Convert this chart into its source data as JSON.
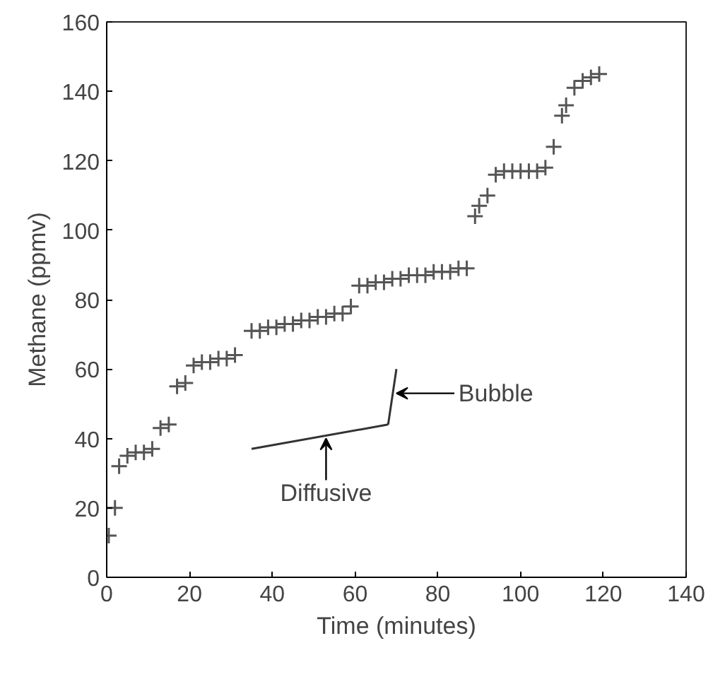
{
  "chart_data": {
    "type": "scatter",
    "xlabel": "Time (minutes)",
    "ylabel": "Methane (ppmv)",
    "xlim": [
      0,
      140
    ],
    "ylim": [
      0,
      160
    ],
    "xticks": [
      0,
      20,
      40,
      60,
      80,
      100,
      120,
      140
    ],
    "yticks": [
      0,
      20,
      40,
      60,
      80,
      100,
      120,
      140,
      160
    ],
    "grid": false,
    "series": [
      {
        "marker": "cross",
        "color": "#555555",
        "x": [
          0.5,
          2,
          3,
          5,
          7,
          9,
          11,
          13,
          15,
          17,
          19,
          21,
          23,
          25,
          27,
          29,
          31,
          35,
          37,
          39,
          41,
          43,
          45,
          47,
          49,
          51,
          53,
          55,
          57,
          59,
          61,
          63,
          65,
          67,
          69,
          71,
          73,
          75,
          77,
          79,
          81,
          83,
          85,
          87,
          89,
          90,
          92,
          94,
          96,
          98,
          100,
          102,
          104,
          106,
          108,
          110,
          111,
          113,
          115,
          117,
          119
        ],
        "values": [
          12,
          20,
          32,
          35,
          36,
          36,
          37,
          43,
          44,
          55,
          56,
          61,
          62,
          62,
          63,
          63,
          64,
          71,
          71,
          72,
          72,
          73,
          73,
          74,
          74,
          75,
          75,
          76,
          76,
          78,
          84,
          84,
          85,
          85,
          86,
          86,
          87,
          87,
          87,
          88,
          88,
          88,
          89,
          89,
          104,
          107,
          110,
          116,
          117,
          117,
          117,
          117,
          117,
          118,
          124,
          133,
          136,
          141,
          143,
          144,
          145
        ]
      },
      {
        "type": "line",
        "marker": "none",
        "color": "#333333",
        "x": [
          35,
          68
        ],
        "values": [
          37,
          44
        ]
      },
      {
        "type": "line",
        "marker": "none",
        "color": "#333333",
        "x": [
          68,
          70
        ],
        "values": [
          44,
          60
        ]
      }
    ],
    "annotations": [
      {
        "text": "Diffusive",
        "x": 53,
        "y": 40
      },
      {
        "text": "Bubble",
        "x": 69,
        "y": 53
      }
    ]
  }
}
